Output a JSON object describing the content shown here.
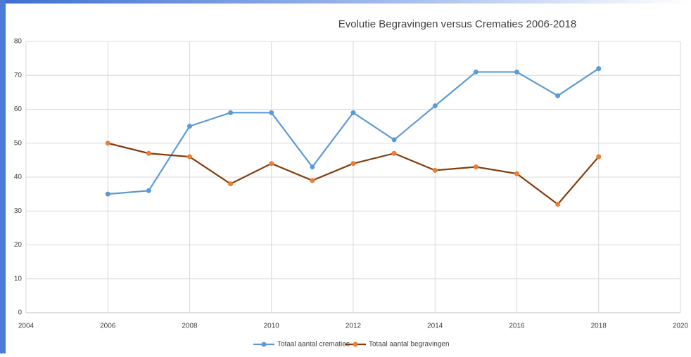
{
  "chart_data": {
    "type": "line",
    "title": "Evolutie Begravingen versus Crematies 2006-2018",
    "x": [
      2006,
      2007,
      2008,
      2009,
      2010,
      2011,
      2012,
      2013,
      2014,
      2015,
      2016,
      2017,
      2018
    ],
    "series": [
      {
        "name": "Totaal aantal crematies",
        "color": "#5b9bd5",
        "marker_color": "#5b9bd5",
        "values": [
          35,
          36,
          55,
          59,
          59,
          43,
          59,
          51,
          61,
          71,
          71,
          64,
          72
        ]
      },
      {
        "name": "Totaal aantal begravingen",
        "color": "#843c0c",
        "marker_color": "#ed7d31",
        "values": [
          50,
          47,
          46,
          38,
          44,
          39,
          44,
          47,
          42,
          43,
          41,
          32,
          46
        ]
      }
    ],
    "xlim": [
      2004,
      2020
    ],
    "xticks": [
      2004,
      2006,
      2008,
      2010,
      2012,
      2014,
      2016,
      2018,
      2020
    ],
    "ylim": [
      0,
      80
    ],
    "yticks": [
      0,
      10,
      20,
      30,
      40,
      50,
      60,
      70,
      80
    ],
    "grid": true,
    "legend": "bottom"
  }
}
